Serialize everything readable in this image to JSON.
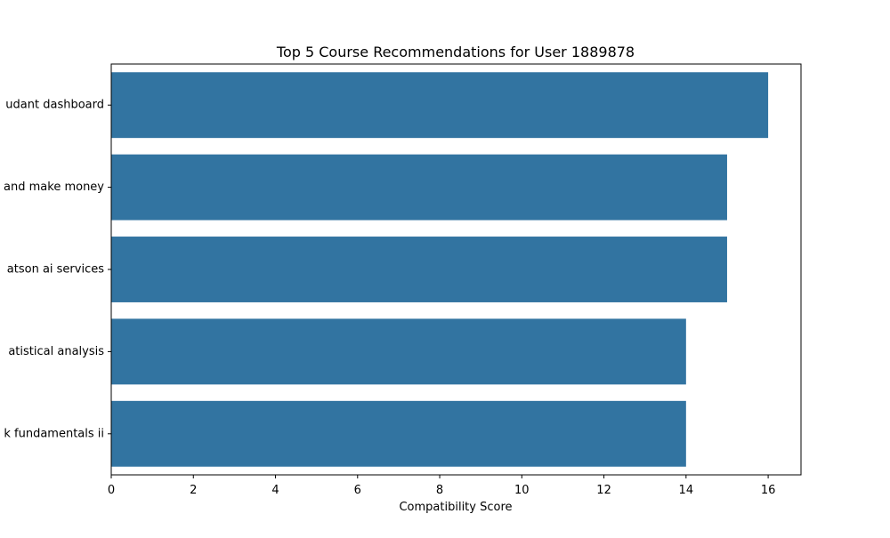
{
  "chart_data": {
    "type": "bar",
    "orientation": "horizontal",
    "title": "Top 5 Course Recommendations for User 1889878",
    "xlabel": "Compatibility Score",
    "ylabel": "",
    "categories": [
      "udant dashboard",
      "and make money",
      "atson ai services",
      "atistical analysis ",
      "k fundamentals ii"
    ],
    "values": [
      16,
      15,
      15,
      14,
      14
    ],
    "xlim": [
      0,
      16.8
    ],
    "xticks": [
      0,
      2,
      4,
      6,
      8,
      10,
      12,
      14,
      16
    ],
    "grid": false,
    "legend": "none",
    "bar_color": "#3274a1"
  }
}
